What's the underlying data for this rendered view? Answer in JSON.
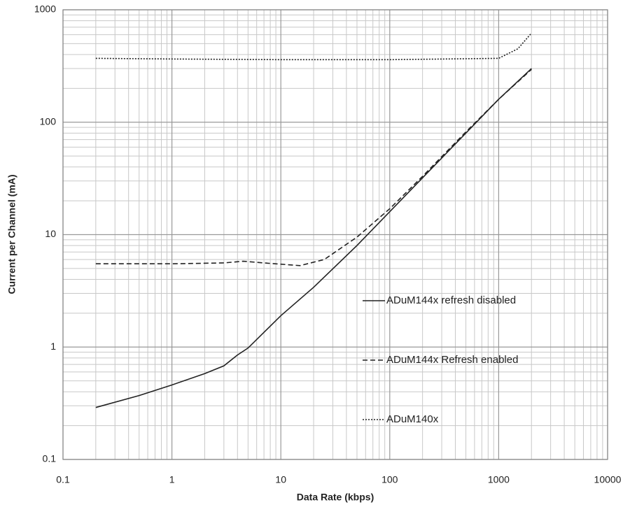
{
  "chart_data": {
    "type": "line",
    "xlabel": "Data Rate (kbps)",
    "ylabel": "Current per Channel (mA)",
    "xscale": "log",
    "yscale": "log",
    "xlim": [
      0.1,
      10000
    ],
    "ylim": [
      0.1,
      1000
    ],
    "xticks": [
      0.1,
      1,
      10,
      100,
      1000,
      10000
    ],
    "yticks": [
      0.1,
      1,
      10,
      100,
      1000
    ],
    "grid": true,
    "minor_grid": true,
    "legend": "right",
    "series": [
      {
        "name": "ADuM144x refresh disabled",
        "color": "#222222",
        "dash": "solid",
        "x": [
          0.2,
          0.5,
          1,
          2,
          3,
          4,
          5,
          10,
          20,
          50,
          100,
          200,
          500,
          1000,
          2000
        ],
        "values": [
          0.29,
          0.37,
          0.46,
          0.58,
          0.68,
          0.85,
          0.98,
          1.9,
          3.4,
          8,
          16,
          32,
          80,
          160,
          300
        ]
      },
      {
        "name": "ADuM144x Refresh enabled",
        "color": "#222222",
        "dash": "dashed",
        "x": [
          0.2,
          1,
          3,
          4.5,
          7,
          15,
          25,
          50,
          100,
          200,
          500,
          1000,
          2000
        ],
        "values": [
          5.5,
          5.5,
          5.6,
          5.8,
          5.6,
          5.3,
          6.0,
          9.5,
          17,
          33,
          82,
          160,
          295
        ]
      },
      {
        "name": "ADuM140x",
        "color": "#222222",
        "dash": "dotted",
        "x": [
          0.2,
          1,
          10,
          100,
          1000,
          1500,
          2000
        ],
        "values": [
          370,
          365,
          360,
          360,
          370,
          450,
          620
        ]
      }
    ]
  }
}
